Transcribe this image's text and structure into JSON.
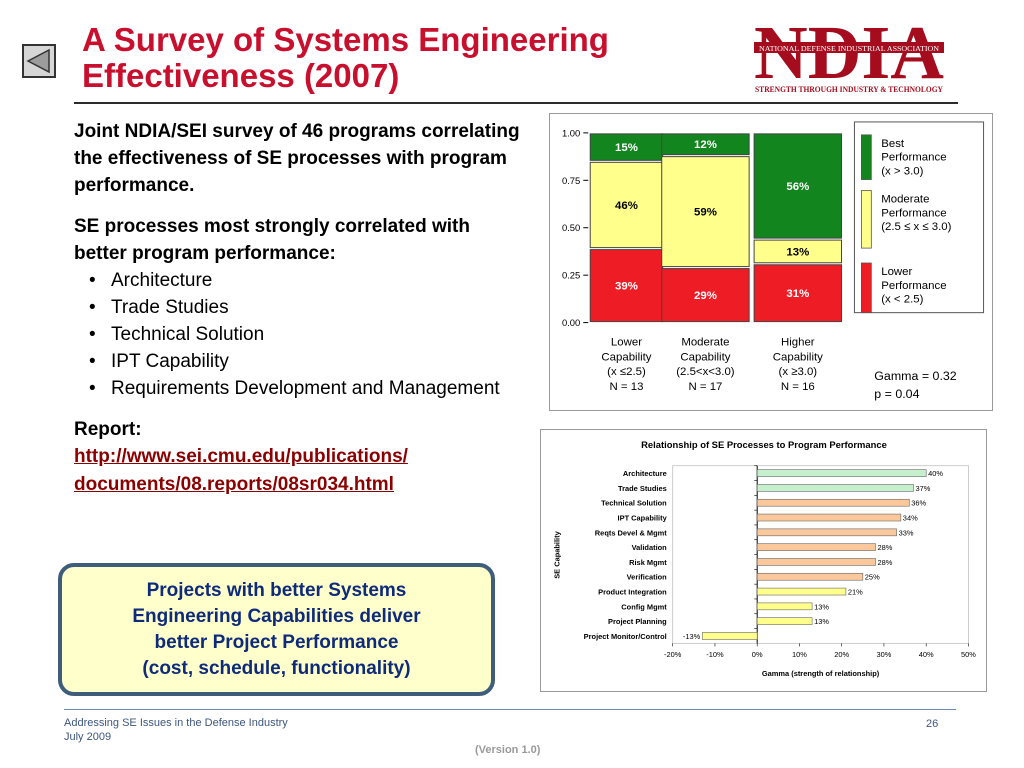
{
  "slide": {
    "title_line1": "A Survey of Systems Engineering",
    "title_line2": "Effectiveness (2007)"
  },
  "logo": {
    "letters": "NDIA",
    "org": "NATIONAL DEFENSE INDUSTRIAL ASSOCIATION",
    "tagline": "STRENGTH THROUGH INDUSTRY & TECHNOLOGY",
    "color": "#a50d1e"
  },
  "body": {
    "intro": "Joint NDIA/SEI survey of 46 programs correlating the effectiveness of SE processes with program performance.",
    "correlated_heading": "SE processes most strongly correlated with better program performance:",
    "processes": [
      "Architecture",
      "Trade Studies",
      "Technical Solution",
      "IPT Capability",
      "Requirements Development and Management"
    ],
    "report_label": "Report:",
    "report_link_line1": "http://www.sei.cmu.edu/publications/",
    "report_link_line2": "documents/08.reports/08sr034.html"
  },
  "callout": {
    "line1": "Projects with better Systems",
    "line2": "Engineering Capabilities deliver",
    "line3": "better Project Performance",
    "line4": "(cost, schedule, functionality)"
  },
  "footer": {
    "line1": "Addressing SE Issues in the Defense Industry",
    "line2": "July 2009",
    "page": "26",
    "version": "(Version 1.0)"
  },
  "colors": {
    "title_red": "#c8102e",
    "best": "#13851f",
    "moderate": "#ffff8c",
    "lower": "#ee1c25",
    "bar_green": "#c6efce",
    "bar_orange": "#fbc89c"
  },
  "chart_data": [
    {
      "type": "bar",
      "subtype": "mosaic-stacked",
      "y_ticks": [
        "1.00",
        "0.75",
        "0.50",
        "0.25",
        "0.00"
      ],
      "ylim": [
        0,
        1
      ],
      "categories": [
        {
          "label": "Lower",
          "label2": "Capability",
          "range": "(x ≤2.5)",
          "n": "N = 13",
          "n_value": 13
        },
        {
          "label": "Moderate",
          "label2": "Capability",
          "range": "(2.5<x<3.0)",
          "n": "N = 17",
          "n_value": 17
        },
        {
          "label": "Higher",
          "label2": "Capability",
          "range": "(x ≥3.0)",
          "n": "N = 16",
          "n_value": 16
        }
      ],
      "series": [
        {
          "name": "Lower Performance",
          "color": "#ee1c25",
          "values": [
            0.39,
            0.29,
            0.31
          ],
          "labels": [
            "39%",
            "29%",
            "31%"
          ]
        },
        {
          "name": "Moderate Performance",
          "color": "#ffff8c",
          "values": [
            0.46,
            0.59,
            0.13
          ],
          "labels": [
            "46%",
            "59%",
            "13%"
          ]
        },
        {
          "name": "Best Performance",
          "color": "#13851f",
          "values": [
            0.15,
            0.12,
            0.56
          ],
          "labels": [
            "15%",
            "12%",
            "56%"
          ]
        }
      ],
      "legend": [
        {
          "line1": "Best",
          "line2": "Performance",
          "line3": "(x > 3.0)",
          "color": "#13851f"
        },
        {
          "line1": "Moderate",
          "line2": "Performance",
          "line3": "(2.5 ≤ x ≤ 3.0)",
          "color": "#ffff8c"
        },
        {
          "line1": "Lower",
          "line2": "Performance",
          "line3": "(x < 2.5)",
          "color": "#ee1c25"
        }
      ],
      "legend_position": "right",
      "stats": {
        "gamma": "Gamma = 0.32",
        "p": "p = 0.04"
      }
    },
    {
      "type": "bar",
      "orientation": "horizontal",
      "title": "Relationship of SE Processes to Program Performance",
      "xlabel": "Gamma (strength of relationship)",
      "ylabel": "SE Capability",
      "xlim": [
        -0.2,
        0.5
      ],
      "x_ticks": [
        "-20%",
        "-10%",
        "0%",
        "10%",
        "20%",
        "30%",
        "40%",
        "50%"
      ],
      "x_tick_values": [
        -0.2,
        -0.1,
        0,
        0.1,
        0.2,
        0.3,
        0.4,
        0.5
      ],
      "categories": [
        "Architecture",
        "Trade Studies",
        "Technical Solution",
        "IPT Capability",
        "Reqts Devel & Mgmt",
        "Validation",
        "Risk Mgmt",
        "Verification",
        "Product Integration",
        "Config Mgmt",
        "Project Planning",
        "Project Monitor/Control"
      ],
      "values": [
        0.4,
        0.37,
        0.36,
        0.34,
        0.33,
        0.28,
        0.28,
        0.25,
        0.21,
        0.13,
        0.13,
        -0.13
      ],
      "labels": [
        "40%",
        "37%",
        "36%",
        "34%",
        "33%",
        "28%",
        "28%",
        "25%",
        "21%",
        "13%",
        "13%",
        "-13%"
      ],
      "bar_colors": [
        "#c6efce",
        "#c6efce",
        "#fbc89c",
        "#fbc89c",
        "#fbc89c",
        "#fbc89c",
        "#fbc89c",
        "#fbc89c",
        "#ffff8c",
        "#ffff8c",
        "#ffff8c",
        "#ffff8c"
      ],
      "grid": false
    }
  ]
}
